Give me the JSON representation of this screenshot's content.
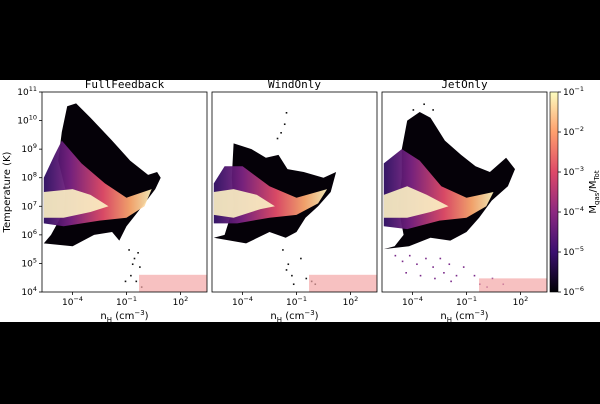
{
  "chart_data": {
    "type": "heatmap",
    "panels": [
      {
        "title": "FullFeedback",
        "ism_box": {
          "x": [
            0.5,
            3000
          ],
          "y": [
            10000,
            40000
          ]
        }
      },
      {
        "title": "WindOnly",
        "ism_box": {
          "x": [
            0.5,
            3000
          ],
          "y": [
            10000,
            40000
          ]
        }
      },
      {
        "title": "JetOnly",
        "ism_box": {
          "x": [
            0.5,
            3000
          ],
          "y": [
            10000,
            30000
          ]
        }
      }
    ],
    "xlabel": "n_H (cm^-3)",
    "ylabel": "Temperature (K)",
    "x_scale": "log",
    "y_scale": "log",
    "xlim": [
      2e-06,
      3000
    ],
    "ylim": [
      10000,
      100000000000
    ],
    "x_ticks": [
      {
        "value": 0.0001,
        "base": "10",
        "exp": "−4"
      },
      {
        "value": 0.1,
        "base": "10",
        "exp": "−1"
      },
      {
        "value": 100,
        "base": "10",
        "exp": "2"
      }
    ],
    "y_ticks": [
      {
        "value": 10000,
        "base": "10",
        "exp": "4"
      },
      {
        "value": 100000,
        "base": "10",
        "exp": "5"
      },
      {
        "value": 1000000,
        "base": "10",
        "exp": "6"
      },
      {
        "value": 10000000,
        "base": "10",
        "exp": "7"
      },
      {
        "value": 100000000,
        "base": "10",
        "exp": "8"
      },
      {
        "value": 1000000000,
        "base": "10",
        "exp": "9"
      },
      {
        "value": 10000000000,
        "base": "10",
        "exp": "10"
      },
      {
        "value": 100000000000,
        "base": "10",
        "exp": "11"
      }
    ],
    "colorbar": {
      "label": "M_gas/M_Tot",
      "scale": "log",
      "range": [
        1e-06,
        0.1
      ],
      "ticks": [
        {
          "value": 0.1,
          "base": "10",
          "exp": "−1"
        },
        {
          "value": 0.01,
          "base": "10",
          "exp": "−2"
        },
        {
          "value": 0.001,
          "base": "10",
          "exp": "−3"
        },
        {
          "value": 0.0001,
          "base": "10",
          "exp": "−4"
        },
        {
          "value": 1e-05,
          "base": "10",
          "exp": "−5"
        },
        {
          "value": 1e-06,
          "base": "10",
          "exp": "−6"
        }
      ],
      "colors": [
        "#000004",
        "#3b0f70",
        "#8c2981",
        "#de4968",
        "#fe9f6d",
        "#fcfdbf"
      ]
    },
    "ism_box_color": "#f4a6a6"
  }
}
